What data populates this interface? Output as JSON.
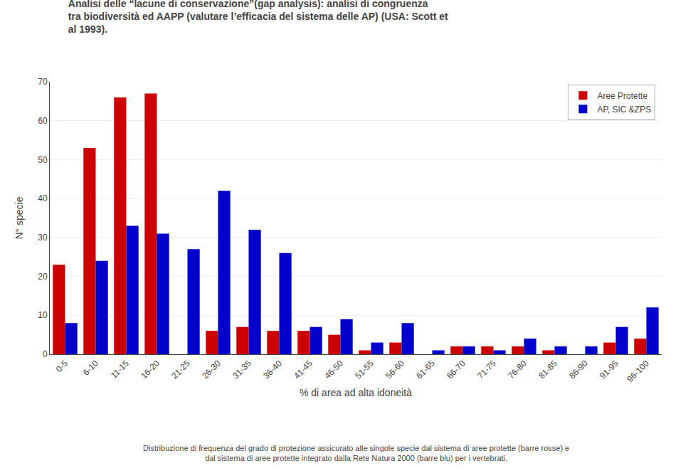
{
  "chart_data": {
    "type": "bar",
    "title": "Analisi delle “lacune di conservazione”(gap analysis): analisi di congruenza\ntra biodiversità ed AAPP (valutare l’efficacia del sistema delle AP) (USA: Scott et\nal 1993).",
    "annotations": [
      "Distribuzione di frequenza del grado di protezione assicurato alle singole specie dal sistema di aree protette (barre rosse) e\ndal sistema di aree protette integrato dalla Rete Natura 2000 (barre blu) per i vertebrati."
    ],
    "xlabel": "% di area ad alta idoneità",
    "ylabel": "N° specie",
    "categories": [
      "0-5",
      "6-10",
      "11-15",
      "16-20",
      "21-25",
      "26-30",
      "31-35",
      "36-40",
      "41-45",
      "46-50",
      "51-55",
      "56-60",
      "61-65",
      "66-70",
      "71-75",
      "76-80",
      "81-85",
      "86-90",
      "91-95",
      "96-100"
    ],
    "series": [
      {
        "name": "Aree Protette",
        "color": "#cc0000",
        "values": [
          23,
          53,
          66,
          67,
          0,
          6,
          7,
          6,
          6,
          5,
          1,
          3,
          0,
          2,
          2,
          2,
          1,
          0,
          3,
          4
        ]
      },
      {
        "name": "AP, SIC &ZPS",
        "color": "#0000cc",
        "values": [
          8,
          24,
          33,
          31,
          27,
          42,
          32,
          26,
          7,
          9,
          3,
          8,
          1,
          2,
          1,
          4,
          2,
          2,
          7,
          12
        ]
      }
    ],
    "ylim": [
      0,
      70
    ],
    "yticks": [
      0,
      10,
      20,
      30,
      40,
      50,
      60,
      70
    ],
    "grid": true,
    "legend": "upper right"
  }
}
